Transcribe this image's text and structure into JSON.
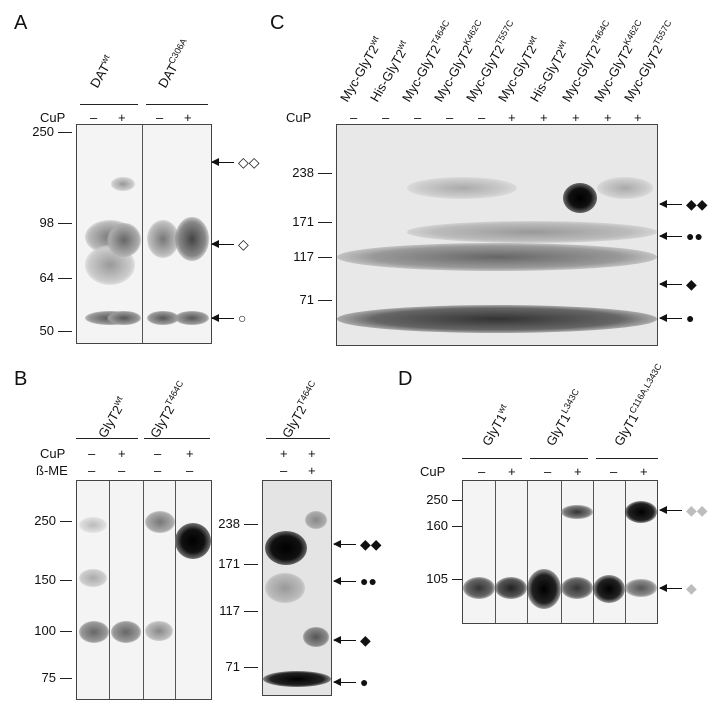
{
  "panels": {
    "A": {
      "label": "A",
      "groups": [
        "DAT",
        "DAT"
      ],
      "group_sup": [
        "wt",
        "C306A"
      ],
      "row_label": "CuP",
      "treatments": [
        "–",
        "+",
        "–",
        "+"
      ],
      "mw_markers": [
        "250",
        "98",
        "64",
        "50"
      ],
      "annotations": [
        "◇◇",
        "◇",
        "○"
      ]
    },
    "B": {
      "label": "B",
      "groups": [
        "GlyT2",
        "GlyT2"
      ],
      "group_sup": [
        "wt",
        "T464C"
      ],
      "row_labels": [
        "CuP",
        "ß-ME"
      ],
      "cup": [
        "–",
        "+",
        "–",
        "+"
      ],
      "bme": [
        "–",
        "–",
        "–",
        "–"
      ],
      "mw_markers": [
        "250",
        "150",
        "100",
        "75"
      ],
      "right_group": "GlyT2",
      "right_group_sup": "T464C",
      "right_cup": [
        "+",
        "+"
      ],
      "right_bme": [
        "–",
        "+"
      ],
      "right_mw": [
        "238",
        "171",
        "117",
        "71"
      ],
      "annotations": [
        "◆◆",
        "●●",
        "◆",
        "●"
      ]
    },
    "C": {
      "label": "C",
      "lanes": [
        {
          "name": "Myc-GlyT2",
          "sup": "wt"
        },
        {
          "name": "His-GlyT2",
          "sup": "wt"
        },
        {
          "name": "Myc-GlyT2",
          "sup": "T464C"
        },
        {
          "name": "Myc-GlyT2",
          "sup": "K462C"
        },
        {
          "name": "Myc-GlyT2",
          "sup": "T557C"
        },
        {
          "name": "Myc-GlyT2",
          "sup": "wt"
        },
        {
          "name": "His-GlyT2",
          "sup": "wt"
        },
        {
          "name": "Myc-GlyT2",
          "sup": "T464C"
        },
        {
          "name": "Myc-GlyT2",
          "sup": "K462C"
        },
        {
          "name": "Myc-GlyT2",
          "sup": "T557C"
        }
      ],
      "row_label": "CuP",
      "treatments": [
        "–",
        "–",
        "–",
        "–",
        "–",
        "+",
        "+",
        "+",
        "+",
        "+"
      ],
      "mw_markers": [
        "238",
        "171",
        "117",
        "71"
      ],
      "annotations": [
        "◆◆",
        "●●",
        "◆",
        "●"
      ]
    },
    "D": {
      "label": "D",
      "groups": [
        "GlyT1",
        "GlyT1",
        "GlyT1"
      ],
      "group_sup": [
        "wt",
        "L343C",
        "C116A,L343C"
      ],
      "row_label": "CuP",
      "treatments": [
        "–",
        "+",
        "–",
        "+",
        "–",
        "+"
      ],
      "mw_markers": [
        "250",
        "160",
        "105"
      ],
      "annotations": [
        "◆◆",
        "◆"
      ]
    }
  }
}
